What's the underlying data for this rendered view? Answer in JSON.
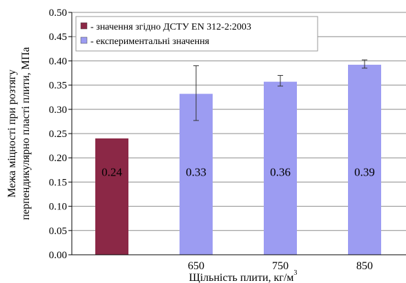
{
  "chart_data": {
    "type": "bar",
    "title": "",
    "xlabel": "Щільність плити, кг/м",
    "xlabel_superscript": "3",
    "ylabel": [
      "Межа міцності при розтягу",
      "перпендикулярно пласті плити, МПа"
    ],
    "ylim": [
      0,
      0.5
    ],
    "y_ticks": [
      "0.00",
      "0.05",
      "0.10",
      "0.15",
      "0.20",
      "0.25",
      "0.30",
      "0.35",
      "0.40",
      "0.45",
      "0.50"
    ],
    "grid": true,
    "legend_position": "top-left",
    "categories": [
      "",
      "650",
      "750",
      "850"
    ],
    "series": [
      {
        "name": "- значення згідно ДСТУ EN 312-2:2003",
        "color": "#8b2846",
        "values": [
          0.24,
          null,
          null,
          null
        ],
        "labels": [
          "0.24",
          null,
          null,
          null
        ]
      },
      {
        "name": "- експериментальні значення",
        "color": "#9c9cf2",
        "values": [
          null,
          0.332,
          0.357,
          0.392
        ],
        "labels": [
          null,
          "0.33",
          "0.36",
          "0.39"
        ],
        "error_low": [
          null,
          0.277,
          0.348,
          0.385
        ],
        "error_high": [
          null,
          0.39,
          0.37,
          0.402
        ]
      }
    ],
    "extra_category_partial": true
  }
}
